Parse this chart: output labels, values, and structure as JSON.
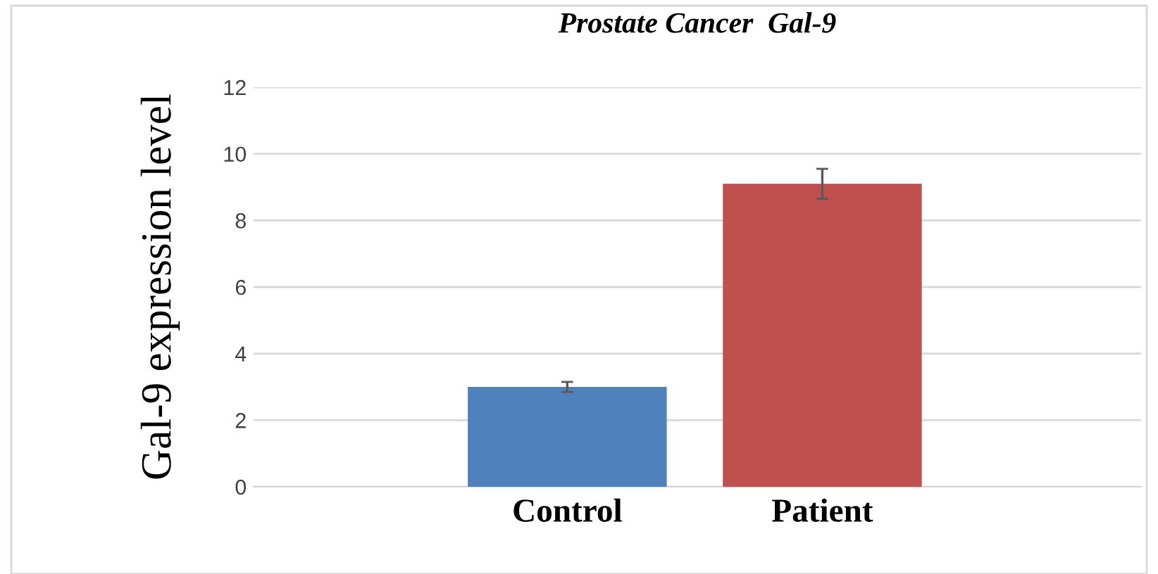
{
  "chart_data": {
    "type": "bar",
    "title": "Prostate Cancer  Gal-9",
    "ylabel": "Gal-9 expression level",
    "categories": [
      "Control",
      "Patient"
    ],
    "values": [
      3.0,
      9.1
    ],
    "colors": [
      "#4f81bd",
      "#c0504d"
    ],
    "errors": [
      0.15,
      0.45
    ],
    "ylim": [
      0,
      12
    ],
    "yticks": [
      0,
      2,
      4,
      6,
      8,
      10,
      12
    ],
    "grid": "y"
  }
}
